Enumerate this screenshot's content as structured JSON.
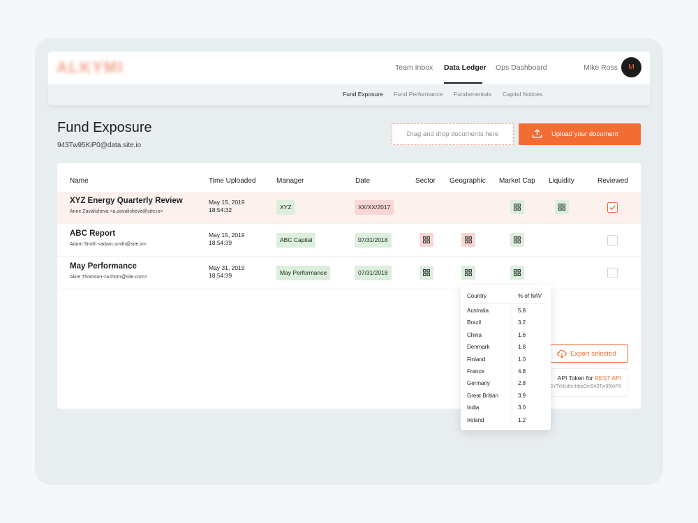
{
  "header": {
    "logo_text": "ALKYMI",
    "nav": [
      "Team Inbox",
      "Data Ledger",
      "Ops Dashboard"
    ],
    "active_nav": "Data Ledger",
    "user_name": "Mike Ross",
    "avatar_initial": "M"
  },
  "subnav": {
    "items": [
      "Fund Exposure",
      "Fund Performance",
      "Fundamentals",
      "Capital Notices"
    ],
    "active": "Fund Exposure"
  },
  "page": {
    "title": "Fund Exposure",
    "email": "943Tw95KiP0@data.site.io"
  },
  "upload": {
    "dropzone_text": "Drag and drop documents here",
    "button_label": "Upload your document"
  },
  "table": {
    "columns": [
      "Name",
      "Time Uploaded",
      "Manager",
      "Date",
      "Sector",
      "Geographic",
      "Market Cap",
      "Liquidity",
      "Reviewed"
    ],
    "rows": [
      {
        "title": "XYZ Energy Quarterly Review",
        "uploader": "Anne Zavalisheva <a.zavalisheva@site.io>",
        "date_uploaded": "May 15, 2019",
        "time_uploaded": "18:54:32",
        "manager": "XYZ",
        "manager_status": "green",
        "date": "XX/XX/2017",
        "date_status": "red",
        "sector": "",
        "geographic": "",
        "market_cap": "green",
        "liquidity": "green",
        "reviewed": true,
        "highlighted": true
      },
      {
        "title": "ABC Report",
        "uploader": "Adam Smith <adam.smith@site.io>",
        "date_uploaded": "May 15, 2019",
        "time_uploaded": "18:54:39",
        "manager": "ABC Capital",
        "manager_status": "green",
        "date": "07/31/2018",
        "date_status": "green",
        "sector": "red",
        "geographic": "red",
        "market_cap": "green",
        "liquidity": "",
        "reviewed": false,
        "highlighted": false
      },
      {
        "title": "May Performance",
        "uploader": "Alice Thomson <a.thom@site.com>",
        "date_uploaded": "May 31, 2019",
        "time_uploaded": "18:54:39",
        "manager": "May Performance",
        "manager_status": "green",
        "date": "07/31/2018",
        "date_status": "green",
        "sector": "green",
        "geographic": "green",
        "market_cap": "green",
        "liquidity": "",
        "reviewed": false,
        "highlighted": false
      }
    ]
  },
  "export": {
    "label": "Export selected"
  },
  "api": {
    "title_prefix": "API Token for ",
    "title_link": "REST API",
    "token": "2SYTiMcdterhbpOm943Tw95KiP0"
  },
  "geo_popover": {
    "headers": [
      "Country",
      "% of NAV"
    ],
    "rows": [
      [
        "Australia",
        "5.8"
      ],
      [
        "Brazil",
        "3.2"
      ],
      [
        "China",
        "1.6"
      ],
      [
        "Denmark",
        "1.8"
      ],
      [
        "Finland",
        "1.0"
      ],
      [
        "France",
        "4.8"
      ],
      [
        "Germany",
        "2.8"
      ],
      [
        "Great Britian",
        "3.9"
      ],
      [
        "India",
        "3.0"
      ],
      [
        "Ireland",
        "1.2"
      ]
    ]
  },
  "colors": {
    "accent": "#f26c34",
    "ok": "#dcefdc",
    "error": "#f9d6d3",
    "highlight_row": "#fdf1ee"
  }
}
